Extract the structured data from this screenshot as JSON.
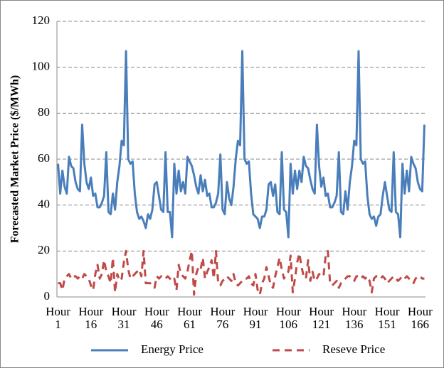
{
  "chart_data": {
    "type": "line",
    "y_label": "Forecasted Market Price ($/MWh)",
    "categories": [
      "Hour 1",
      null,
      null,
      null,
      null,
      null,
      null,
      null,
      null,
      null,
      null,
      null,
      null,
      null,
      null,
      "Hour 16",
      null,
      null,
      null,
      null,
      null,
      null,
      null,
      null,
      null,
      null,
      null,
      null,
      null,
      null,
      "Hour 31",
      null,
      null,
      null,
      null,
      null,
      null,
      null,
      null,
      null,
      null,
      null,
      null,
      null,
      null,
      "Hour 46",
      null,
      null,
      null,
      null,
      null,
      null,
      null,
      null,
      null,
      null,
      null,
      null,
      null,
      null,
      "Hour 61",
      null,
      null,
      null,
      null,
      null,
      null,
      null,
      null,
      null,
      null,
      null,
      null,
      null,
      null,
      "Hour 76",
      null,
      null,
      null,
      null,
      null,
      null,
      null,
      null,
      null,
      null,
      null,
      null,
      null,
      null,
      "Hour 91",
      null,
      null,
      null,
      null,
      null,
      null,
      null,
      null,
      null,
      null,
      null,
      null,
      null,
      null,
      "Hour 106",
      null,
      null,
      null,
      null,
      null,
      null,
      null,
      null,
      null,
      null,
      null,
      null,
      null,
      null,
      "Hour 121",
      null,
      null,
      null,
      null,
      null,
      null,
      null,
      null,
      null,
      null,
      null,
      null,
      null,
      null,
      "Hour 136",
      null,
      null,
      null,
      null,
      null,
      null,
      null,
      null,
      null,
      null,
      null,
      null,
      null,
      null,
      "Hour 151",
      null,
      null,
      null,
      null,
      null,
      null,
      null,
      null,
      null,
      null,
      null,
      null,
      null,
      null,
      "Hour 166",
      null,
      null
    ],
    "series": [
      {
        "name": "Energy Price",
        "color": "#4a7ebb",
        "dash": false,
        "values": [
          58,
          45,
          55,
          48,
          45,
          61,
          57,
          56,
          50,
          47,
          46,
          75,
          58,
          50,
          47,
          52,
          44,
          45,
          39,
          39,
          41,
          44,
          63,
          37,
          36,
          45,
          38,
          50,
          57,
          68,
          66,
          107,
          60,
          58,
          59,
          45,
          37,
          34,
          35,
          33,
          30,
          36,
          34,
          38,
          49,
          50,
          44,
          38,
          37,
          63,
          37,
          37,
          26,
          58,
          45,
          55,
          46,
          50,
          45,
          61,
          59,
          57,
          53,
          48,
          45,
          53,
          46,
          51,
          44,
          45,
          39,
          39,
          41,
          45,
          62,
          38,
          36,
          50,
          43,
          40,
          48,
          60,
          68,
          66,
          107,
          60,
          58,
          59,
          45,
          36,
          35,
          34,
          30,
          35,
          35,
          38,
          49,
          50,
          44,
          49,
          37,
          36,
          63,
          38,
          37,
          26,
          58,
          45,
          55,
          47,
          55,
          50,
          61,
          57,
          56,
          51,
          47,
          45,
          75,
          57,
          48,
          52,
          44,
          45,
          39,
          39,
          41,
          44,
          63,
          37,
          36,
          46,
          38,
          50,
          57,
          68,
          66,
          107,
          60,
          58,
          59,
          44,
          36,
          34,
          35,
          31,
          35,
          36,
          44,
          50,
          44,
          38,
          37,
          63,
          37,
          36,
          26,
          58,
          45,
          55,
          46,
          61,
          58,
          56,
          50,
          47,
          46,
          75
        ]
      },
      {
        "name": "Reseve Price",
        "color": "#be4b48",
        "dash": true,
        "values": [
          6,
          6,
          3,
          8,
          9,
          10,
          8,
          9,
          9,
          8,
          9,
          8,
          10,
          9,
          8,
          5,
          3,
          10,
          14,
          8,
          10,
          16,
          11,
          9,
          6,
          17,
          2,
          10,
          7,
          8,
          15,
          20,
          12,
          8,
          9,
          10,
          11,
          12,
          9,
          20,
          6,
          6,
          6,
          5,
          4,
          9,
          8,
          9,
          8,
          8,
          9,
          8,
          7,
          8,
          3,
          14,
          10,
          9,
          8,
          11,
          16,
          20,
          1,
          10,
          13,
          12,
          17,
          8,
          11,
          13,
          16,
          8,
          20,
          6,
          5,
          7,
          8,
          9,
          8,
          7,
          10,
          6,
          5,
          6,
          7,
          8,
          8,
          9,
          6,
          5,
          10,
          3,
          1,
          6,
          8,
          13,
          9,
          5,
          4,
          9,
          13,
          17,
          12,
          8,
          10,
          11,
          18,
          2,
          8,
          15,
          19,
          13,
          9,
          8,
          16,
          7,
          11,
          7,
          8,
          10,
          9,
          9,
          18,
          20,
          6,
          5,
          6,
          7,
          4,
          6,
          7,
          8,
          9,
          9,
          8,
          7,
          9,
          9,
          8,
          9,
          8,
          9,
          7,
          2,
          8,
          9,
          9,
          8,
          9,
          8,
          6,
          7,
          8,
          9,
          8,
          7,
          8,
          9,
          8,
          9,
          8,
          7,
          6,
          8,
          9,
          9,
          8,
          8
        ]
      }
    ],
    "ylim": [
      0,
      120
    ],
    "yticks": [
      0,
      20,
      40,
      60,
      80,
      100,
      120
    ],
    "grid": true,
    "legend": "bottom"
  }
}
